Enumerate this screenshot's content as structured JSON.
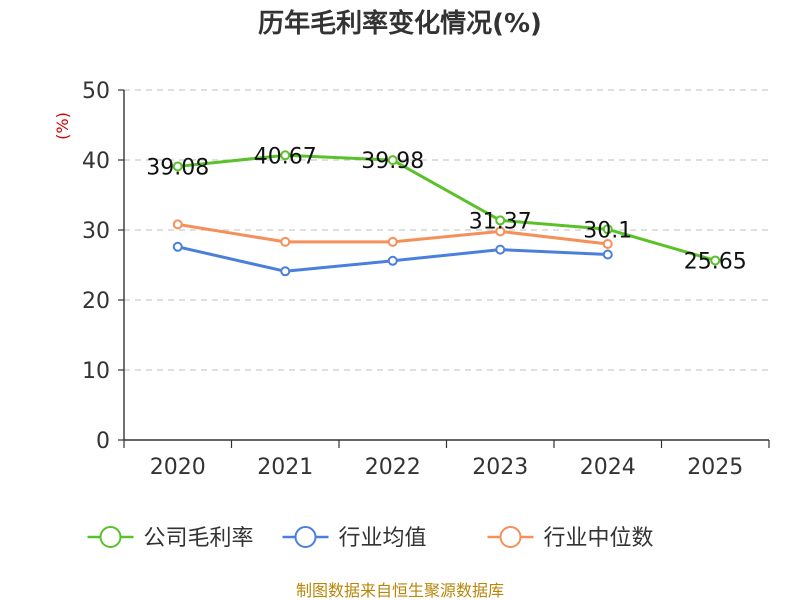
{
  "chart_data": {
    "type": "line",
    "title": "历年毛利率变化情况(%)",
    "ylabel": "(%)",
    "xlabel": "",
    "categories": [
      "2020",
      "2021",
      "2022",
      "2023",
      "2024",
      "2025"
    ],
    "ylim": [
      0,
      50
    ],
    "yticks": [
      0,
      10,
      20,
      30,
      40,
      50
    ],
    "grid": true,
    "legend_position": "bottom",
    "series": [
      {
        "name": "公司毛利率",
        "color": "#5ac12a",
        "values": [
          39.08,
          40.67,
          39.98,
          31.37,
          30.1,
          25.65
        ],
        "labels": [
          "39.08",
          "40.67",
          "39.98",
          "31.37",
          "30.1",
          "25.65"
        ]
      },
      {
        "name": "行业均值",
        "color": "#4a7fdc",
        "values": [
          27.6,
          24.1,
          25.6,
          27.2,
          26.5,
          null
        ]
      },
      {
        "name": "行业中位数",
        "color": "#f5905a",
        "values": [
          30.8,
          28.3,
          28.3,
          29.8,
          28.0,
          null
        ]
      }
    ]
  },
  "footer": {
    "source": "制图数据来自恒生聚源数据库"
  }
}
